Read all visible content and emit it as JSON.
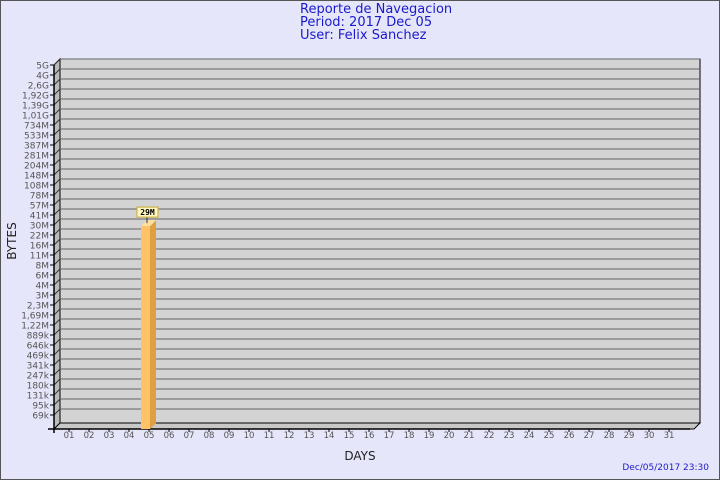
{
  "header": {
    "title": "Reporte de Navegacion",
    "period": "Period: 2017 Dec 05",
    "user": "User: Felix Sanchez"
  },
  "footer": {
    "timestamp": "Dec/05/2017 23:30"
  },
  "colors": {
    "background": "#e6e6fa",
    "plot": "#d3d3d3",
    "bar": "#ffc266",
    "bar_side": "#e0a040",
    "title": "#1a1acc"
  },
  "chart_data": {
    "type": "bar",
    "xlabel": "DAYS",
    "ylabel": "BYTES",
    "grid": true,
    "y_scale": "log",
    "y_ticks": [
      "5G",
      "4G",
      "2,6G",
      "1,92G",
      "1,39G",
      "1,01G",
      "734M",
      "533M",
      "387M",
      "281M",
      "204M",
      "148M",
      "108M",
      "78M",
      "57M",
      "41M",
      "30M",
      "22M",
      "16M",
      "11M",
      "8M",
      "6M",
      "4M",
      "3M",
      "2,3M",
      "1,69M",
      "1,22M",
      "889k",
      "646k",
      "469k",
      "341k",
      "247k",
      "180k",
      "131k",
      "95k",
      "69k"
    ],
    "categories": [
      "01",
      "02",
      "03",
      "04",
      "05",
      "06",
      "07",
      "08",
      "09",
      "10",
      "11",
      "12",
      "13",
      "14",
      "15",
      "16",
      "17",
      "18",
      "19",
      "20",
      "21",
      "22",
      "23",
      "24",
      "25",
      "26",
      "27",
      "28",
      "29",
      "30",
      "31"
    ],
    "series": [
      {
        "values": [
          0,
          0,
          0,
          0,
          29000000,
          0,
          0,
          0,
          0,
          0,
          0,
          0,
          0,
          0,
          0,
          0,
          0,
          0,
          0,
          0,
          0,
          0,
          0,
          0,
          0,
          0,
          0,
          0,
          0,
          0,
          0
        ],
        "data_labels": [
          "",
          "",
          "",
          "",
          "29M",
          "",
          "",
          "",
          "",
          "",
          "",
          "",
          "",
          "",
          "",
          "",
          "",
          "",
          "",
          "",
          "",
          "",
          "",
          "",
          "",
          "",
          "",
          "",
          "",
          "",
          ""
        ]
      }
    ]
  }
}
